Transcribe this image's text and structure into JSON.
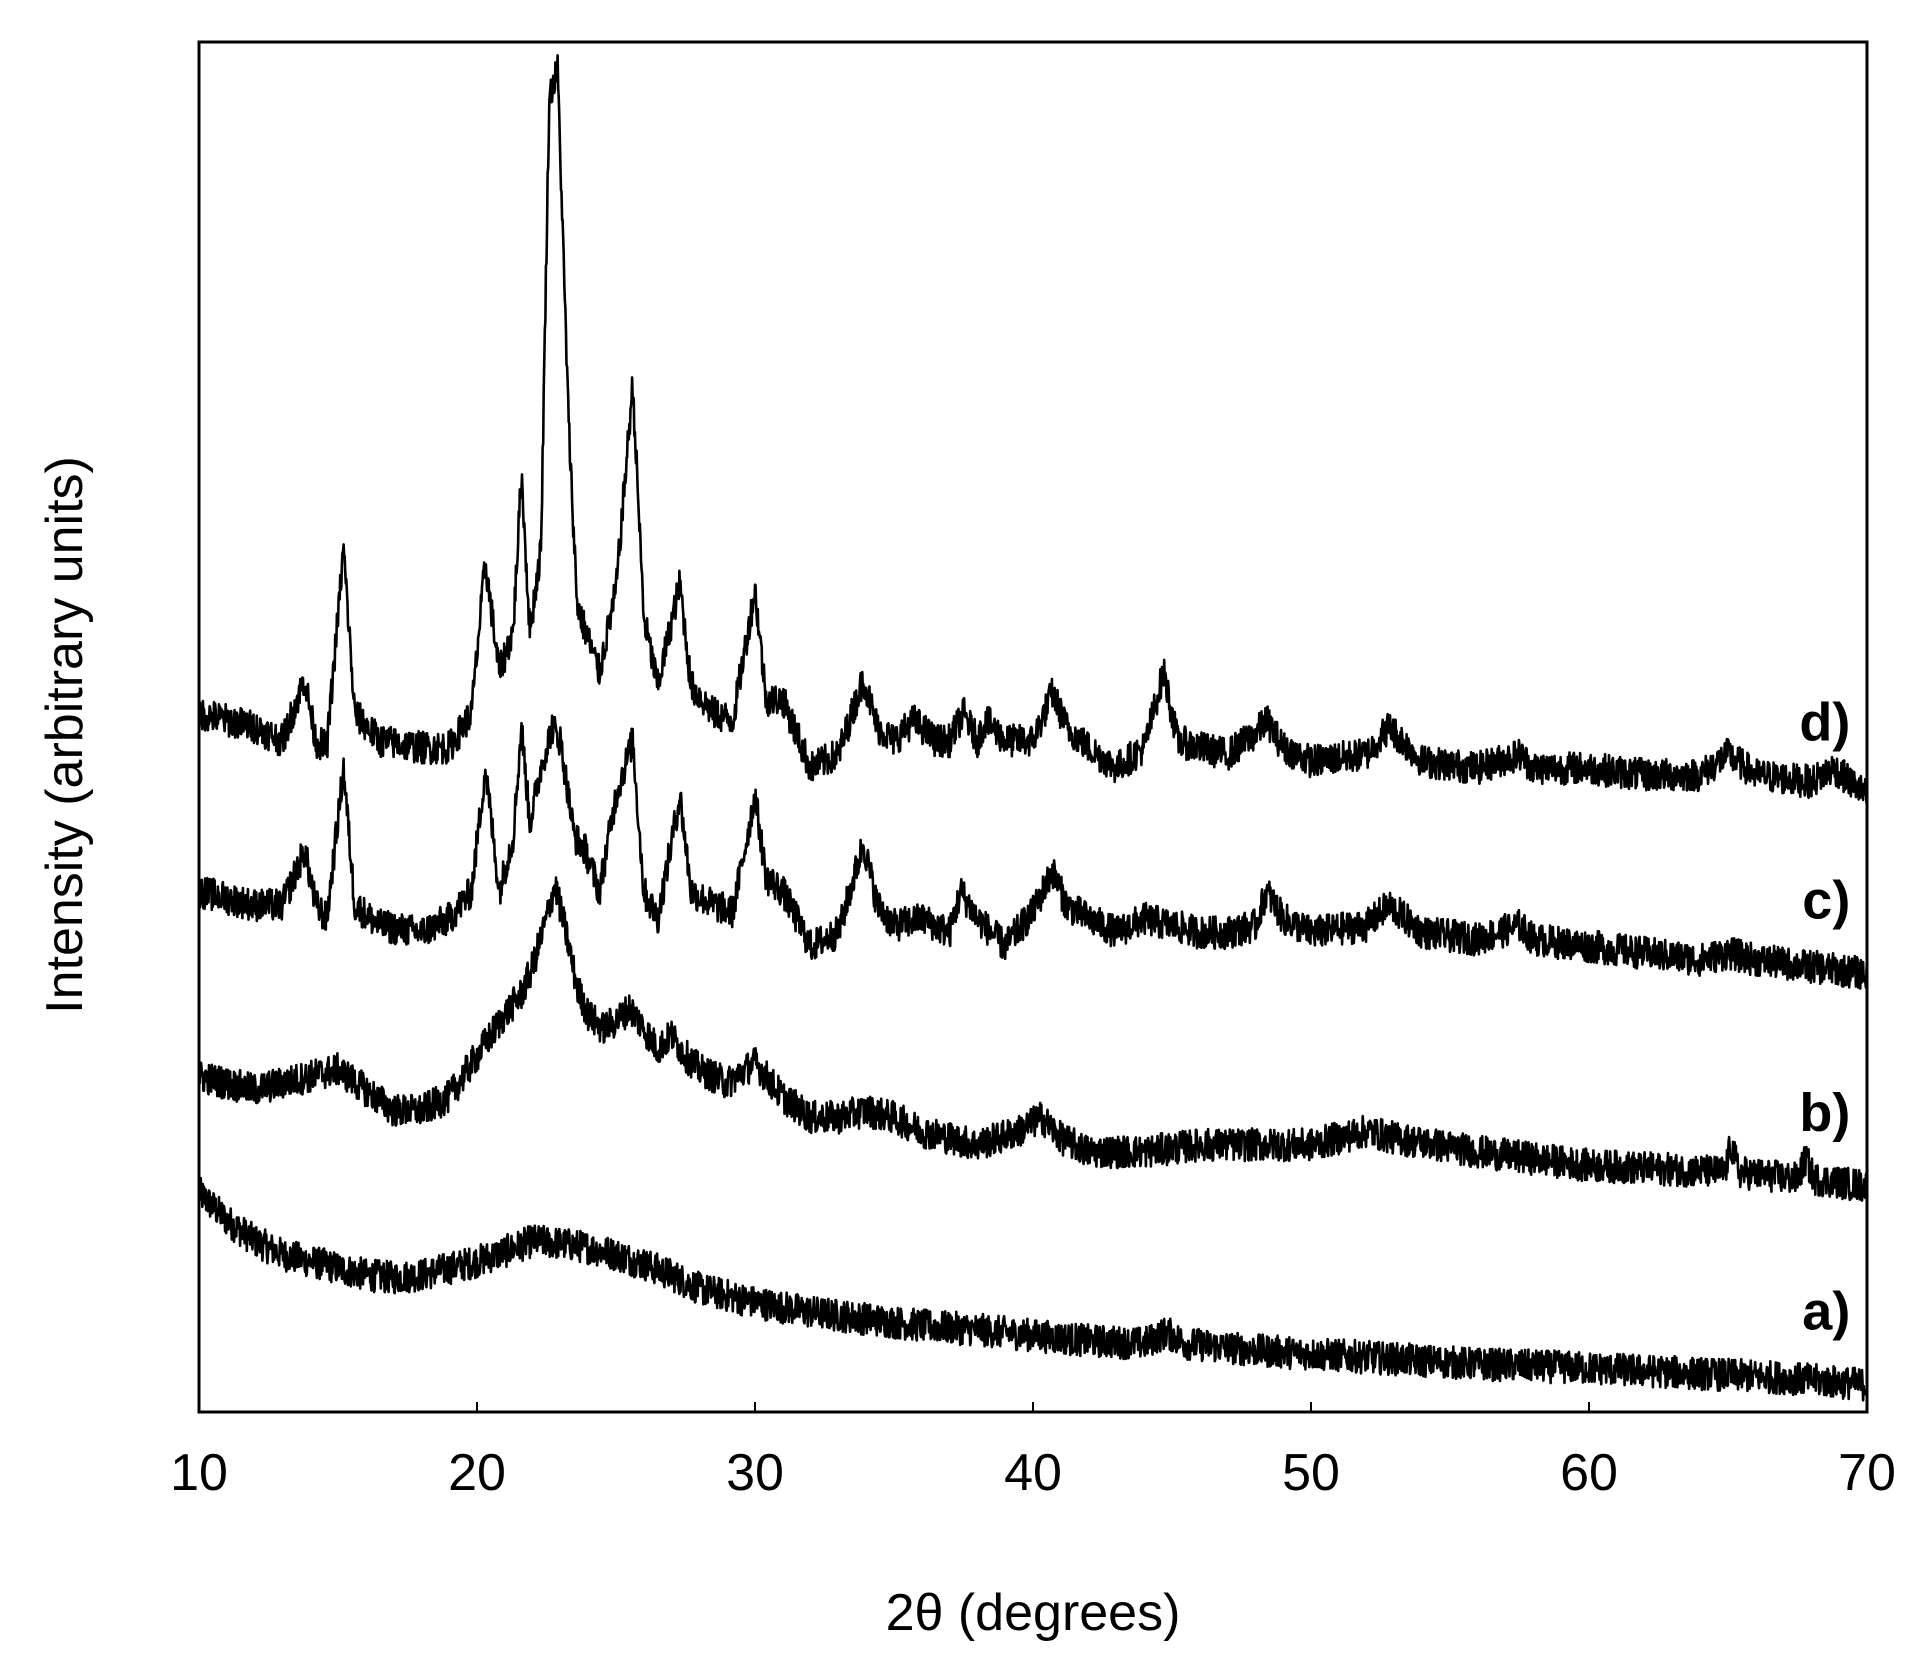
{
  "chart_data": {
    "type": "line",
    "title": "",
    "xlabel": "2θ (degrees)",
    "ylabel": "Intensity (arbitrary units)",
    "xlim": [
      10,
      70
    ],
    "ylim": [
      0,
      100
    ],
    "x_ticks": [
      "10",
      "20",
      "30",
      "40",
      "50",
      "60",
      "70"
    ],
    "y_ticks": [],
    "grid": false,
    "legend": "none",
    "line_color": "#000000",
    "series": [
      {
        "name": "a)",
        "points": [
          [
            10,
            16
          ],
          [
            11,
            14
          ],
          [
            12,
            12.5
          ],
          [
            13,
            11.5
          ],
          [
            14,
            11
          ],
          [
            15,
            10.5
          ],
          [
            16,
            10
          ],
          [
            17,
            9.8
          ],
          [
            18,
            10
          ],
          [
            19,
            10.5
          ],
          [
            20,
            11
          ],
          [
            21,
            11.7
          ],
          [
            22,
            12.5
          ],
          [
            23,
            12.3
          ],
          [
            24,
            12
          ],
          [
            25,
            11.5
          ],
          [
            26,
            10.8
          ],
          [
            27,
            10
          ],
          [
            28,
            9
          ],
          [
            30,
            8
          ],
          [
            32,
            7.3
          ],
          [
            34,
            6.8
          ],
          [
            36,
            6.3
          ],
          [
            38,
            6
          ],
          [
            40,
            5.6
          ],
          [
            42,
            5.2
          ],
          [
            44,
            5
          ],
          [
            44.8,
            5.8
          ],
          [
            45.5,
            5
          ],
          [
            48,
            4.5
          ],
          [
            52,
            4
          ],
          [
            56,
            3.5
          ],
          [
            60,
            3.2
          ],
          [
            64,
            2.8
          ],
          [
            67,
            2.5
          ],
          [
            70,
            2
          ]
        ]
      },
      {
        "name": "b)",
        "points": [
          [
            10,
            24.5
          ],
          [
            11,
            24
          ],
          [
            12,
            23.5
          ],
          [
            13,
            24
          ],
          [
            14,
            24.5
          ],
          [
            15,
            25
          ],
          [
            16,
            23.5
          ],
          [
            17,
            22
          ],
          [
            18,
            22
          ],
          [
            19,
            23
          ],
          [
            20,
            26
          ],
          [
            21,
            29
          ],
          [
            21.6,
            30.5
          ],
          [
            22,
            32.5
          ],
          [
            22.5,
            36
          ],
          [
            22.8,
            38.5
          ],
          [
            23.2,
            35
          ],
          [
            23.6,
            31
          ],
          [
            24,
            29
          ],
          [
            24.5,
            28
          ],
          [
            25,
            28.5
          ],
          [
            25.5,
            29.5
          ],
          [
            26,
            28
          ],
          [
            26.5,
            26.5
          ],
          [
            27,
            27.5
          ],
          [
            27.5,
            26
          ],
          [
            28,
            25
          ],
          [
            29,
            24
          ],
          [
            30,
            25.5
          ],
          [
            31,
            23
          ],
          [
            32,
            21.5
          ],
          [
            33,
            21.5
          ],
          [
            34,
            22
          ],
          [
            35,
            21.5
          ],
          [
            36,
            20.5
          ],
          [
            38,
            19.5
          ],
          [
            39.5,
            20.5
          ],
          [
            40.3,
            21.5
          ],
          [
            41,
            20
          ],
          [
            42,
            19
          ],
          [
            44,
            19
          ],
          [
            46,
            19.5
          ],
          [
            48,
            19.5
          ],
          [
            50,
            19.5
          ],
          [
            52,
            20.5
          ],
          [
            53,
            20
          ],
          [
            56,
            19
          ],
          [
            60,
            18
          ],
          [
            64.9,
            17.5
          ],
          [
            65.1,
            19.5
          ],
          [
            65.4,
            17.5
          ],
          [
            67.5,
            17
          ],
          [
            67.8,
            18.5
          ],
          [
            68.1,
            17
          ],
          [
            70,
            16.5
          ]
        ]
      },
      {
        "name": "c)",
        "points": [
          [
            10,
            38
          ],
          [
            11,
            37.5
          ],
          [
            12,
            37
          ],
          [
            13,
            37
          ],
          [
            13.8,
            41
          ],
          [
            14.2,
            37
          ],
          [
            14.6,
            36
          ],
          [
            15.2,
            47
          ],
          [
            15.6,
            37
          ],
          [
            16.5,
            35.5
          ],
          [
            18,
            35
          ],
          [
            19,
            36
          ],
          [
            19.8,
            38
          ],
          [
            20.3,
            47
          ],
          [
            20.8,
            38
          ],
          [
            21.3,
            42
          ],
          [
            21.6,
            50
          ],
          [
            21.9,
            43
          ],
          [
            22.3,
            47
          ],
          [
            22.7,
            50
          ],
          [
            23,
            49
          ],
          [
            23.5,
            42
          ],
          [
            23.9,
            41
          ],
          [
            24.4,
            38
          ],
          [
            25,
            45
          ],
          [
            25.6,
            49
          ],
          [
            26,
            38
          ],
          [
            26.5,
            36
          ],
          [
            27.3,
            45
          ],
          [
            27.7,
            38
          ],
          [
            28.5,
            37
          ],
          [
            29.2,
            36.5
          ],
          [
            30,
            45
          ],
          [
            30.4,
            39
          ],
          [
            31,
            38
          ],
          [
            32,
            34
          ],
          [
            33,
            35
          ],
          [
            33.9,
            41.5
          ],
          [
            34.4,
            37
          ],
          [
            35,
            35.5
          ],
          [
            36,
            36
          ],
          [
            37,
            35
          ],
          [
            37.4,
            38
          ],
          [
            38,
            36
          ],
          [
            39,
            34
          ],
          [
            40,
            36.5
          ],
          [
            40.7,
            39.5
          ],
          [
            41.2,
            37
          ],
          [
            42,
            36
          ],
          [
            43,
            35
          ],
          [
            44,
            36
          ],
          [
            45,
            35.5
          ],
          [
            46,
            35
          ],
          [
            47,
            35
          ],
          [
            48,
            35.5
          ],
          [
            48.4,
            38
          ],
          [
            49,
            36
          ],
          [
            50,
            35
          ],
          [
            52,
            35.5
          ],
          [
            52.8,
            37
          ],
          [
            54,
            35
          ],
          [
            56,
            34.5
          ],
          [
            57.5,
            35.5
          ],
          [
            58,
            34.5
          ],
          [
            60,
            34
          ],
          [
            62,
            33.5
          ],
          [
            64,
            33
          ],
          [
            65,
            33.5
          ],
          [
            66,
            33
          ],
          [
            68,
            32.5
          ],
          [
            70,
            32
          ]
        ]
      },
      {
        "name": "d)",
        "points": [
          [
            10,
            51
          ],
          [
            11,
            50.5
          ],
          [
            12,
            50
          ],
          [
            13,
            49
          ],
          [
            13.8,
            53.5
          ],
          [
            14.2,
            49
          ],
          [
            14.6,
            48.5
          ],
          [
            15.2,
            63
          ],
          [
            15.6,
            51
          ],
          [
            16.5,
            49
          ],
          [
            18,
            48.5
          ],
          [
            19,
            48.5
          ],
          [
            19.8,
            51
          ],
          [
            20.3,
            62
          ],
          [
            20.8,
            54
          ],
          [
            21.3,
            57
          ],
          [
            21.6,
            68.5
          ],
          [
            21.9,
            57
          ],
          [
            22.3,
            63
          ],
          [
            22.6,
            96
          ],
          [
            22.9,
            98
          ],
          [
            23.3,
            72
          ],
          [
            23.6,
            59
          ],
          [
            23.9,
            57
          ],
          [
            24.4,
            54
          ],
          [
            25,
            60
          ],
          [
            25.6,
            75
          ],
          [
            26,
            58
          ],
          [
            26.5,
            53
          ],
          [
            27.3,
            60.5
          ],
          [
            27.7,
            53
          ],
          [
            28.5,
            51
          ],
          [
            29.2,
            50.5
          ],
          [
            30,
            60
          ],
          [
            30.4,
            52
          ],
          [
            31,
            52
          ],
          [
            32,
            47
          ],
          [
            33,
            48
          ],
          [
            33.9,
            53.5
          ],
          [
            34.4,
            50
          ],
          [
            35,
            49
          ],
          [
            35.7,
            50.5
          ],
          [
            36.5,
            49
          ],
          [
            37,
            49
          ],
          [
            37.5,
            51
          ],
          [
            38,
            49
          ],
          [
            38.3,
            50.5
          ],
          [
            39,
            49
          ],
          [
            40,
            49
          ],
          [
            40.7,
            52.5
          ],
          [
            41.2,
            50
          ],
          [
            42,
            48.5
          ],
          [
            43,
            47
          ],
          [
            44,
            48.5
          ],
          [
            44.7,
            54
          ],
          [
            45.2,
            49
          ],
          [
            46,
            48.5
          ],
          [
            47,
            48
          ],
          [
            48,
            49.5
          ],
          [
            48.4,
            50.5
          ],
          [
            49,
            48.5
          ],
          [
            50,
            47.5
          ],
          [
            52,
            48
          ],
          [
            52.8,
            50
          ],
          [
            54,
            47.5
          ],
          [
            56,
            47
          ],
          [
            57.5,
            48
          ],
          [
            58,
            47
          ],
          [
            60,
            47
          ],
          [
            62,
            46.5
          ],
          [
            64,
            46.5
          ],
          [
            65,
            48
          ],
          [
            66,
            46.5
          ],
          [
            68,
            46
          ],
          [
            68.8,
            47
          ],
          [
            70,
            45
          ]
        ]
      }
    ]
  }
}
